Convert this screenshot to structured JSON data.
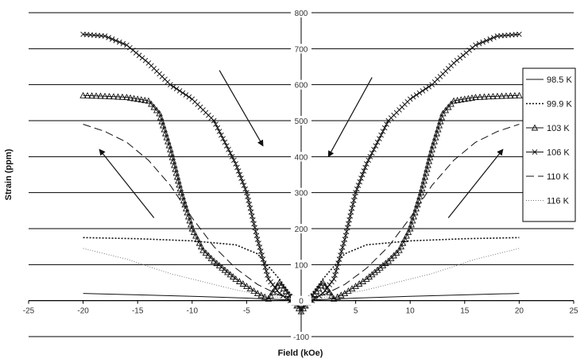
{
  "chart_data": {
    "type": "line",
    "title": "",
    "xlabel": "Field (kOe)",
    "ylabel": "Strain (ppm)",
    "xlim": [
      -25,
      25
    ],
    "ylim": [
      -100,
      800
    ],
    "xticks": [
      "-25",
      "-20",
      "-15",
      "-10",
      "-5",
      "0",
      "5",
      "10",
      "15",
      "20",
      "25"
    ],
    "yticks": [
      "-100",
      "0",
      "100",
      "200",
      "300",
      "400",
      "500",
      "600",
      "700",
      "800"
    ],
    "grid": "horizontal",
    "legend_position": "right",
    "series": [
      {
        "name": "98.5 K",
        "style": "solid-thin",
        "color": "#111111",
        "x": [
          -20,
          -15,
          -10,
          -5,
          -2,
          0,
          2,
          5,
          10,
          15,
          20
        ],
        "y": [
          20,
          16,
          12,
          7,
          3,
          0,
          3,
          7,
          12,
          16,
          20
        ]
      },
      {
        "name": "99.9 K",
        "style": "dotted",
        "color": "#111111",
        "x": [
          -20,
          -15,
          -10,
          -6,
          -4,
          -2,
          -1,
          0,
          1,
          2,
          4,
          6,
          10,
          15,
          20
        ],
        "y": [
          175,
          172,
          166,
          155,
          130,
          60,
          20,
          -5,
          20,
          60,
          130,
          155,
          166,
          172,
          175
        ]
      },
      {
        "name": "103 K",
        "style": "triangle",
        "color": "#111111",
        "x": [
          -20,
          -18,
          -16,
          -14,
          -13,
          -12,
          -11,
          -10,
          -9,
          -8,
          -7,
          -6,
          -5,
          -4,
          -3,
          -2,
          -1,
          0,
          1,
          2,
          3,
          4,
          5,
          6,
          7,
          8,
          9,
          10,
          11,
          12,
          13,
          14,
          16,
          18,
          20
        ],
        "y": [
          570,
          568,
          565,
          555,
          520,
          420,
          300,
          200,
          140,
          110,
          85,
          60,
          40,
          20,
          5,
          50,
          10,
          -30,
          10,
          50,
          5,
          20,
          40,
          60,
          85,
          110,
          140,
          200,
          300,
          420,
          520,
          555,
          565,
          568,
          570
        ]
      },
      {
        "name": "106 K",
        "style": "cross",
        "color": "#111111",
        "x": [
          -20,
          -18,
          -16,
          -14,
          -12,
          -10,
          -8,
          -6,
          -5,
          -4,
          -3,
          -2,
          -1,
          0,
          1,
          2,
          3,
          4,
          5,
          6,
          8,
          10,
          12,
          14,
          16,
          18,
          20
        ],
        "y": [
          740,
          735,
          710,
          660,
          600,
          560,
          500,
          380,
          300,
          170,
          60,
          20,
          0,
          -20,
          0,
          20,
          60,
          170,
          300,
          380,
          500,
          560,
          600,
          660,
          710,
          735,
          740
        ]
      },
      {
        "name": "110 K",
        "style": "dashed",
        "color": "#111111",
        "x": [
          -20,
          -18,
          -16,
          -14,
          -12,
          -10,
          -8,
          -6,
          -4,
          -2,
          0,
          2,
          4,
          6,
          8,
          10,
          12,
          14,
          16,
          18,
          20
        ],
        "y": [
          490,
          470,
          440,
          390,
          320,
          230,
          150,
          90,
          45,
          15,
          0,
          15,
          45,
          90,
          150,
          230,
          320,
          390,
          440,
          470,
          490
        ]
      },
      {
        "name": "116 K",
        "style": "dotted-fine",
        "color": "#777777",
        "x": [
          -20,
          -18,
          -16,
          -14,
          -12,
          -10,
          -8,
          -6,
          -4,
          -2,
          0,
          2,
          4,
          6,
          8,
          10,
          12,
          14,
          16,
          18,
          20
        ],
        "y": [
          145,
          130,
          115,
          95,
          75,
          60,
          45,
          30,
          18,
          8,
          0,
          8,
          18,
          30,
          45,
          60,
          75,
          95,
          115,
          130,
          145
        ]
      }
    ],
    "annotations": [
      {
        "type": "arrow",
        "from": [
          -13.5,
          230
        ],
        "to": [
          -18.5,
          420
        ]
      },
      {
        "type": "arrow",
        "from": [
          -7.5,
          640
        ],
        "to": [
          -3.5,
          430
        ]
      },
      {
        "type": "arrow",
        "from": [
          6.5,
          620
        ],
        "to": [
          2.5,
          400
        ]
      },
      {
        "type": "arrow",
        "from": [
          13.5,
          230
        ],
        "to": [
          18.5,
          420
        ]
      }
    ]
  }
}
